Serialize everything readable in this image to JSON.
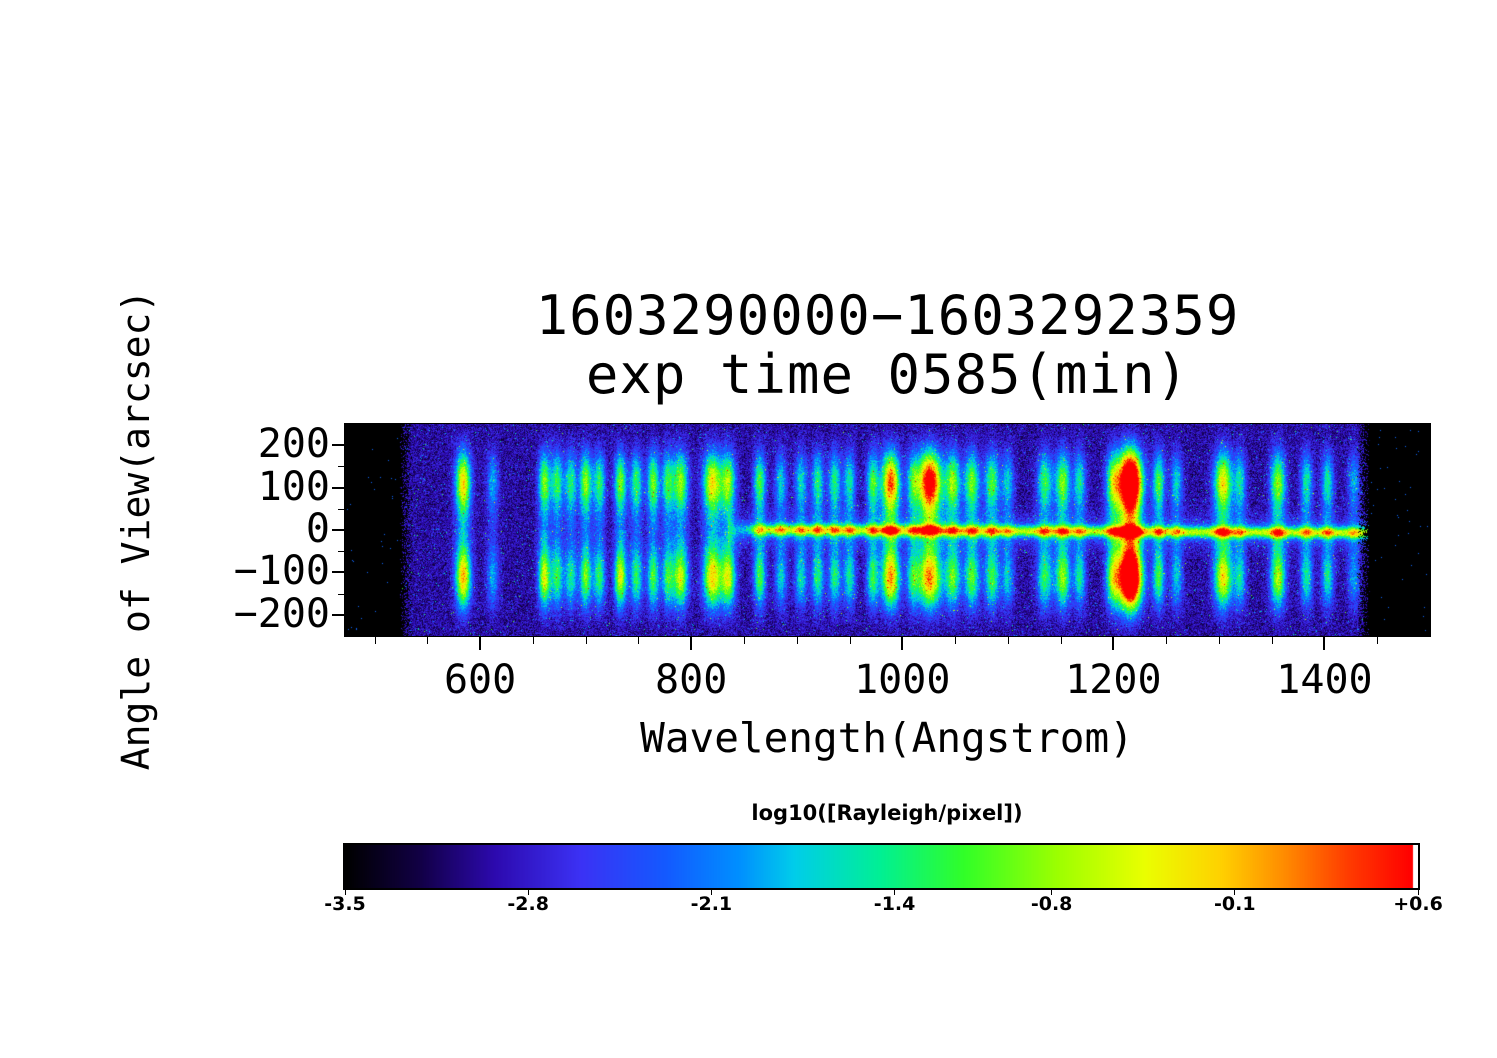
{
  "chart_data": {
    "type": "heatmap",
    "title_line1": "1603290000−1603292359",
    "title_line2": "exp time 0585(min)",
    "xlabel": "Wavelength(Angstrom)",
    "ylabel": "Angle of View(arcsec)",
    "x_range": [
      472,
      1500
    ],
    "data_x_range": [
      524,
      1443
    ],
    "y_range": [
      -250,
      250
    ],
    "value_range": [
      -3.5,
      0.6
    ],
    "x_ticks": [
      {
        "value": 600,
        "label": "600"
      },
      {
        "value": 800,
        "label": "800"
      },
      {
        "value": 1000,
        "label": "1000"
      },
      {
        "value": 1200,
        "label": "1200"
      },
      {
        "value": 1400,
        "label": "1400"
      }
    ],
    "y_ticks": [
      {
        "value": 200,
        "label": "200"
      },
      {
        "value": 100,
        "label": "100"
      },
      {
        "value": 0,
        "label": "0"
      },
      {
        "value": -100,
        "label": "−100"
      },
      {
        "value": -200,
        "label": "−200"
      }
    ],
    "x_minor_step": 50,
    "y_minor_ticks": [
      -150,
      -50,
      50,
      150
    ],
    "colorbar": {
      "label": "log10([Rayleigh/pixel])",
      "min": -3.5,
      "max": 0.6,
      "ticks": [
        {
          "value": -3.5,
          "label": "-3.5"
        },
        {
          "value": -2.8,
          "label": "-2.8"
        },
        {
          "value": -2.1,
          "label": "-2.1"
        },
        {
          "value": -1.4,
          "label": "-1.4"
        },
        {
          "value": -0.8,
          "label": "-0.8"
        },
        {
          "value": -0.1,
          "label": "-0.1"
        },
        {
          "value": 0.6,
          "label": "+0.6"
        }
      ]
    },
    "background_level": -2.95,
    "noise_sigma": 0.45,
    "emission_lines": [
      [
        584,
        2.4,
        5,
        1.0,
        1.05
      ],
      [
        612,
        0.9,
        4,
        1.0,
        1.0
      ],
      [
        661,
        1.9,
        4,
        0.95,
        1.15
      ],
      [
        673,
        1.5,
        4,
        1.0,
        1.0
      ],
      [
        686,
        1.4,
        4,
        1.0,
        0.95
      ],
      [
        700,
        1.8,
        4,
        1.05,
        1.0
      ],
      [
        713,
        1.5,
        4,
        1.0,
        1.0
      ],
      [
        733,
        1.9,
        4,
        0.95,
        1.15
      ],
      [
        748,
        1.5,
        4,
        1.0,
        1.0
      ],
      [
        764,
        1.7,
        4,
        1.05,
        0.95
      ],
      [
        778,
        1.5,
        4,
        1.0,
        1.0
      ],
      [
        790,
        1.9,
        5,
        1.0,
        1.1
      ],
      [
        820,
        2.2,
        6,
        1.05,
        1.1
      ],
      [
        835,
        1.9,
        5,
        1.0,
        1.1
      ],
      [
        865,
        1.6,
        4,
        1.0,
        1.0
      ],
      [
        885,
        1.1,
        4,
        1.0,
        1.0
      ],
      [
        904,
        1.2,
        4,
        1.0,
        1.0
      ],
      [
        920,
        1.4,
        4,
        1.0,
        1.0
      ],
      [
        936,
        1.4,
        4,
        1.0,
        1.0
      ],
      [
        950,
        1.3,
        4,
        1.0,
        1.0
      ],
      [
        972,
        1.5,
        4,
        1.05,
        1.0
      ],
      [
        989,
        2.5,
        6,
        1.15,
        1.05
      ],
      [
        1010,
        1.3,
        4,
        1.0,
        1.0
      ],
      [
        1026,
        2.7,
        8,
        1.3,
        1.0
      ],
      [
        1048,
        1.7,
        5,
        1.1,
        1.0
      ],
      [
        1066,
        1.7,
        5,
        1.05,
        1.0
      ],
      [
        1085,
        1.6,
        5,
        1.0,
        1.0
      ],
      [
        1100,
        1.1,
        4,
        1.0,
        1.0
      ],
      [
        1135,
        1.5,
        5,
        1.0,
        1.0
      ],
      [
        1152,
        1.8,
        5,
        1.0,
        1.05
      ],
      [
        1168,
        1.3,
        4,
        1.0,
        1.0
      ],
      [
        1200,
        1.8,
        5,
        1.0,
        1.05
      ],
      [
        1216,
        4.2,
        7.5,
        1.2,
        1.2
      ],
      [
        1243,
        1.6,
        4,
        1.0,
        1.0
      ],
      [
        1260,
        1.1,
        4,
        1.0,
        1.0
      ],
      [
        1304,
        2.2,
        6,
        1.05,
        1.05
      ],
      [
        1320,
        1.2,
        4,
        1.0,
        1.0
      ],
      [
        1356,
        1.9,
        5,
        1.0,
        1.05
      ],
      [
        1383,
        1.3,
        4,
        1.0,
        1.0
      ],
      [
        1403,
        1.3,
        4,
        1.0,
        1.0
      ],
      [
        1428,
        0.9,
        4,
        1.0,
        1.0
      ]
    ],
    "center_line": {
      "start": 875,
      "end": 1443,
      "amp": 1.85,
      "bump_factor": 0.35,
      "sigma_arcsec": 9,
      "halo_amp": 0.5,
      "halo_sigma": 26,
      "tilt": -0.012
    },
    "colormap_stops": [
      [
        0.0,
        0,
        0,
        0
      ],
      [
        0.07,
        18,
        0,
        70
      ],
      [
        0.14,
        45,
        10,
        175
      ],
      [
        0.22,
        60,
        50,
        245
      ],
      [
        0.3,
        20,
        90,
        255
      ],
      [
        0.37,
        0,
        145,
        255
      ],
      [
        0.42,
        0,
        205,
        235
      ],
      [
        0.5,
        0,
        240,
        150
      ],
      [
        0.58,
        50,
        255,
        40
      ],
      [
        0.67,
        160,
        255,
        0
      ],
      [
        0.75,
        235,
        255,
        0
      ],
      [
        0.82,
        255,
        210,
        0
      ],
      [
        0.88,
        255,
        140,
        0
      ],
      [
        0.94,
        255,
        60,
        0
      ],
      [
        1.0,
        255,
        0,
        0
      ]
    ]
  }
}
